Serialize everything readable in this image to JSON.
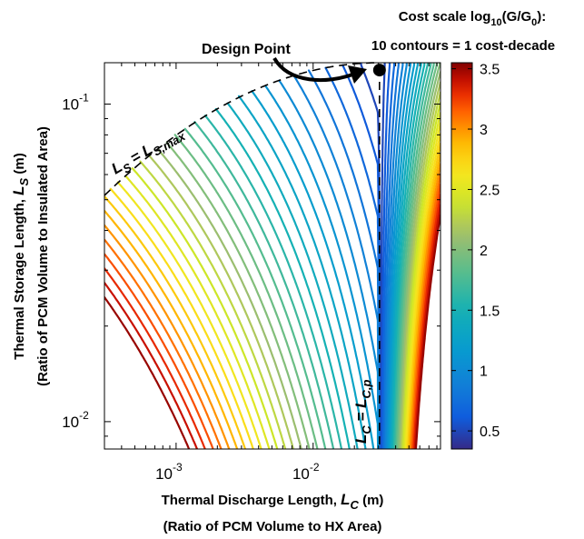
{
  "chart_data": {
    "type": "contour",
    "x": {
      "label": "Thermal Discharge Length,",
      "symbol": "L",
      "symbol_sub": "C",
      "unit": "(m)",
      "label2": "(Ratio of PCM Volume to HX Area)",
      "scale": "log",
      "range": [
        0.0003,
        0.085
      ],
      "ticks": [
        {
          "value": 0.001,
          "base": "10",
          "exp": "-3"
        },
        {
          "value": 0.01,
          "base": "10",
          "exp": "-2"
        }
      ]
    },
    "y": {
      "label": "Thermal Storage Length,",
      "symbol": "L",
      "symbol_sub": "S",
      "unit": "(m)",
      "label2": "(Ratio of PCM Volume to Insulated Area)",
      "scale": "log",
      "range": [
        0.0082,
        0.135
      ],
      "ticks": [
        {
          "value": 0.01,
          "base": "10",
          "exp": "-2"
        },
        {
          "value": 0.1,
          "base": "10",
          "exp": "-1"
        }
      ]
    },
    "colorbar": {
      "title_line1_pre": "Cost scale log",
      "title_line1_sub": "10",
      "title_line1_mid": "(G/G",
      "title_line1_sub2": "0",
      "title_line1_post": "):",
      "title_line2": "10 contours = 1 cost-decade",
      "range": [
        0.35,
        3.55
      ],
      "colormap": "parula-to-jet",
      "ticks": [
        {
          "value": 0.5,
          "label": "0.5"
        },
        {
          "value": 1,
          "label": "1"
        },
        {
          "value": 1.5,
          "label": "1.5"
        },
        {
          "value": 2,
          "label": "2"
        },
        {
          "value": 2.5,
          "label": "2.5"
        },
        {
          "value": 3,
          "label": "3"
        },
        {
          "value": 3.5,
          "label": "3.5"
        }
      ]
    },
    "contour_step": 0.1,
    "constraint_lines": [
      {
        "kind": "LS_max",
        "label_main": "L",
        "label_sub": "S",
        "label_eq": " = L",
        "label_sub2": "S,max",
        "style": "dashed"
      },
      {
        "kind": "LC_p",
        "x_value": 0.0305,
        "label_main": "L",
        "label_sub": "C",
        "label_eq": " = L",
        "label_sub2": "C,p",
        "style": "dashed"
      }
    ],
    "design_point": {
      "label": "Design Point",
      "x": 0.0305,
      "y": 0.128
    },
    "levels_min": 0.4,
    "levels_max": 3.5
  }
}
